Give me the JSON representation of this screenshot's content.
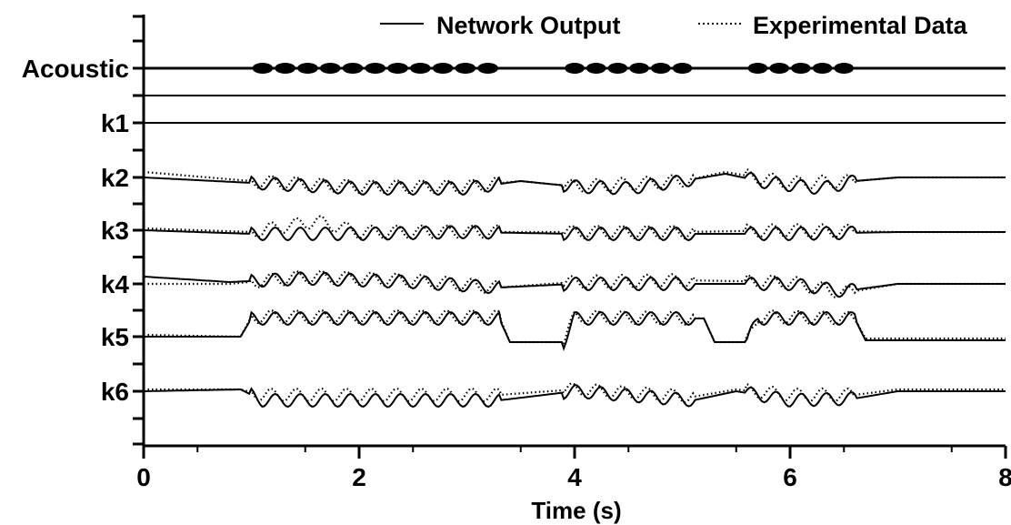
{
  "chart_data": {
    "type": "line",
    "xlabel": "Time (s)",
    "xlim": [
      0,
      8
    ],
    "x_ticks": [
      "0",
      "2",
      "4",
      "6",
      "8"
    ],
    "y_track_labels": [
      "Acoustic",
      "k1",
      "k2",
      "k3",
      "k4",
      "k5",
      "k6"
    ],
    "legend": {
      "placement": "top-right",
      "entries": [
        {
          "name": "Network Output",
          "style": "solid"
        },
        {
          "name": "Experimental Data",
          "style": "dotted"
        }
      ]
    },
    "acoustic_bursts": [
      [
        1.0,
        3.3
      ],
      [
        3.9,
        5.1
      ],
      [
        5.6,
        6.6
      ]
    ],
    "series": [
      {
        "name": "Network Output",
        "tracks": {
          "k1": [
            [
              0,
              0
            ],
            [
              8,
              0
            ]
          ],
          "k2": [
            [
              0,
              0
            ],
            [
              1,
              -0.3
            ],
            [
              2,
              -0.6
            ],
            [
              3,
              -0.6
            ],
            [
              3.5,
              -0.2
            ],
            [
              4,
              -0.5
            ],
            [
              4.5,
              -0.6
            ],
            [
              5,
              -0.2
            ],
            [
              5.4,
              0.2
            ],
            [
              5.8,
              -0.3
            ],
            [
              6.3,
              -0.6
            ],
            [
              6.6,
              -0.2
            ],
            [
              7,
              0
            ],
            [
              8,
              0
            ]
          ],
          "k3": [
            [
              0,
              0
            ],
            [
              1,
              -0.2
            ],
            [
              2,
              -0.2
            ],
            [
              3,
              -0.1
            ],
            [
              4,
              -0.2
            ],
            [
              5,
              -0.2
            ],
            [
              6,
              -0.2
            ],
            [
              7,
              -0.1
            ],
            [
              8,
              -0.1
            ]
          ],
          "k4": [
            [
              0,
              0.4
            ],
            [
              0.8,
              0.1
            ],
            [
              1.5,
              0.3
            ],
            [
              2.5,
              0.1
            ],
            [
              3.3,
              -0.2
            ],
            [
              4,
              0
            ],
            [
              5,
              0
            ],
            [
              6,
              0
            ],
            [
              6.5,
              -0.4
            ],
            [
              7,
              0
            ],
            [
              8,
              0
            ]
          ],
          "k5": [
            [
              0,
              0
            ],
            [
              0.9,
              0
            ],
            [
              1,
              1
            ],
            [
              3.3,
              1
            ],
            [
              3.4,
              -0.3
            ],
            [
              3.9,
              -0.3
            ],
            [
              4,
              1
            ],
            [
              5.2,
              1
            ],
            [
              5.3,
              -0.3
            ],
            [
              5.6,
              -0.3
            ],
            [
              5.7,
              1
            ],
            [
              6.6,
              1
            ],
            [
              6.7,
              -0.2
            ],
            [
              8,
              -0.2
            ]
          ],
          "k6": [
            [
              0,
              0
            ],
            [
              0.9,
              0.1
            ],
            [
              1.1,
              -0.5
            ],
            [
              3.3,
              -0.5
            ],
            [
              4,
              0
            ],
            [
              5.1,
              -0.5
            ],
            [
              5.5,
              0
            ],
            [
              6,
              -0.5
            ],
            [
              6.6,
              -0.4
            ],
            [
              7,
              0
            ],
            [
              8,
              0
            ]
          ]
        }
      },
      {
        "name": "Experimental Data",
        "tracks": {
          "k1": [],
          "k2": [
            [
              0,
              0.3
            ],
            [
              1,
              -0.2
            ],
            [
              2,
              -0.5
            ],
            [
              3,
              -0.5
            ],
            [
              3.5,
              -0.2
            ],
            [
              4,
              -0.5
            ],
            [
              5,
              -0.2
            ],
            [
              5.4,
              0.3
            ],
            [
              6,
              -0.3
            ],
            [
              6.6,
              -0.2
            ],
            [
              7,
              0
            ],
            [
              8,
              0
            ]
          ],
          "k3": [
            [
              0,
              0.1
            ],
            [
              1,
              -0.1
            ],
            [
              1.6,
              0.5
            ],
            [
              2,
              -0.1
            ],
            [
              3,
              -0.1
            ],
            [
              4,
              -0.1
            ],
            [
              5,
              -0.1
            ],
            [
              6,
              0
            ],
            [
              7,
              -0.1
            ],
            [
              8,
              -0.1
            ]
          ],
          "k4": [
            [
              0,
              0
            ],
            [
              0.8,
              0
            ],
            [
              1.5,
              0.4
            ],
            [
              2.5,
              0.2
            ],
            [
              3.3,
              -0.2
            ],
            [
              4,
              0.1
            ],
            [
              5,
              0.2
            ],
            [
              6,
              0.1
            ],
            [
              6.5,
              -0.5
            ],
            [
              7,
              0
            ],
            [
              8,
              0
            ]
          ],
          "k5": [
            [
              0,
              0.1
            ],
            [
              0.9,
              0
            ],
            [
              1,
              1.1
            ],
            [
              3.3,
              1.1
            ],
            [
              3.4,
              -0.3
            ],
            [
              3.9,
              -0.3
            ],
            [
              4,
              1.1
            ],
            [
              5.2,
              1
            ],
            [
              5.3,
              -0.3
            ],
            [
              5.6,
              -0.3
            ],
            [
              5.7,
              1.1
            ],
            [
              6.6,
              1
            ],
            [
              6.7,
              -0.1
            ],
            [
              8,
              -0.1
            ]
          ],
          "k6": [
            [
              0,
              0.1
            ],
            [
              0.9,
              0.1
            ],
            [
              1.1,
              -0.2
            ],
            [
              3.3,
              -0.2
            ],
            [
              4,
              0.1
            ],
            [
              5.1,
              -0.3
            ],
            [
              5.5,
              0.1
            ],
            [
              6,
              -0.2
            ],
            [
              6.6,
              -0.2
            ],
            [
              7,
              0.1
            ],
            [
              8,
              0.1
            ]
          ]
        }
      }
    ],
    "grid": false
  }
}
